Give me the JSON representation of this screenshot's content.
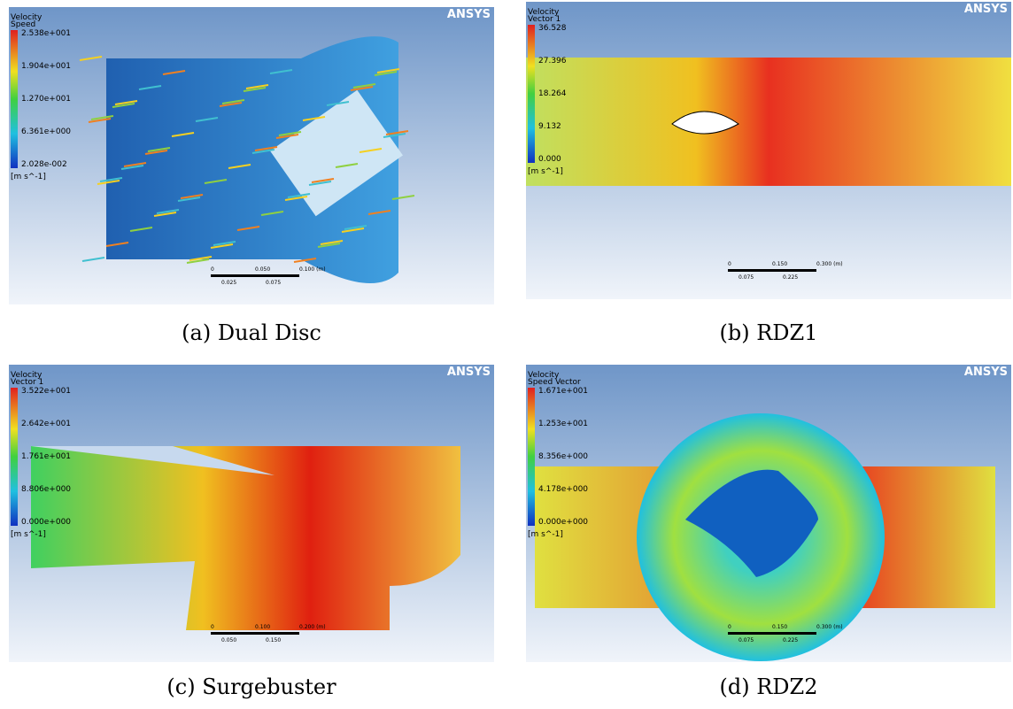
{
  "panels": [
    {
      "legend_title": [
        "Velocity",
        "Speed"
      ],
      "legend_ticks": [
        "2.538e+001",
        "1.904e+001",
        "1.270e+001",
        "6.361e+000",
        "2.028e-002"
      ],
      "unit": "[m s^-1]",
      "logo": "ANSYS",
      "scale_top": [
        "0",
        "0.050",
        "0.100 (m)"
      ],
      "scale_bottom": [
        "0.025",
        "0.075"
      ],
      "caption": "(a) Dual Disc"
    },
    {
      "legend_title": [
        "Velocity",
        "Vector 1"
      ],
      "legend_ticks": [
        "36.528",
        "27.396",
        "18.264",
        "9.132",
        "0.000"
      ],
      "unit": "[m s^-1]",
      "logo": "ANSYS",
      "scale_top": [
        "0",
        "0.150",
        "0.300 (m)"
      ],
      "scale_bottom": [
        "0.075",
        "0.225"
      ],
      "caption": "(b) RDZ1"
    },
    {
      "legend_title": [
        "Velocity",
        "Vector 1"
      ],
      "legend_ticks": [
        "3.522e+001",
        "2.642e+001",
        "1.761e+001",
        "8.806e+000",
        "0.000e+000"
      ],
      "unit": "[m s^-1]",
      "logo": "ANSYS",
      "scale_top": [
        "0",
        "0.100",
        "0.200 (m)"
      ],
      "scale_bottom": [
        "0.050",
        "0.150"
      ],
      "caption": "(c) Surgebuster"
    },
    {
      "legend_title": [
        "Velocity",
        "Speed Vector"
      ],
      "legend_ticks": [
        "1.671e+001",
        "1.253e+001",
        "8.356e+000",
        "4.178e+000",
        "0.000e+000"
      ],
      "unit": "[m s^-1]",
      "logo": "ANSYS",
      "scale_top": [
        "0",
        "0.150",
        "0.300 (m)"
      ],
      "scale_bottom": [
        "0.075",
        "0.225"
      ],
      "caption": "(d) RDZ2"
    }
  ]
}
